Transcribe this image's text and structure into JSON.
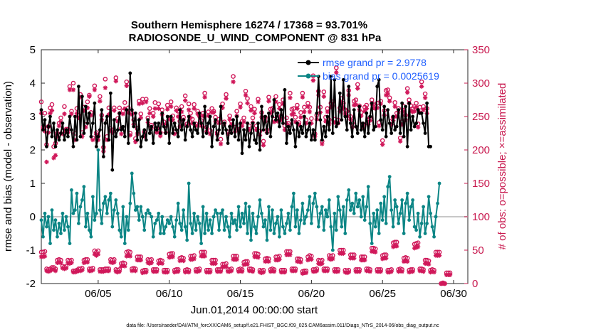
{
  "chart_data": {
    "type": "line",
    "title_line1": "Southern Hemisphere 16274 / 17368 = 93.701%",
    "title_line2": "RADIOSONDE_U_WIND_COMPONENT @ 831 hPa",
    "xlabel": "Jun.01,2014 00:00:00 start",
    "ylabel": "rmse and bias (model - observation)",
    "y2label": "# of obs: o=possible; ×=assimilated",
    "footer": "data file: /Users/raeder/DAI/ATM_forcXX/CAM6_setup/f.e21.FHIST_BGC.f09_025.CAM6assim.011/Diags_NTrS_2014-06/obs_diag_output.nc",
    "xlim": [
      1.0,
      31.0
    ],
    "ylim": [
      -2,
      5
    ],
    "y2lim": [
      0,
      350
    ],
    "xticks": [
      {
        "value": 5,
        "label": "06/05"
      },
      {
        "value": 10,
        "label": "06/10"
      },
      {
        "value": 15,
        "label": "06/15"
      },
      {
        "value": 20,
        "label": "06/20"
      },
      {
        "value": 25,
        "label": "06/25"
      },
      {
        "value": 30,
        "label": "06/30"
      }
    ],
    "yticks": [
      "-2",
      "-1",
      "0",
      "1",
      "2",
      "3",
      "4",
      "5"
    ],
    "y2ticks": [
      "0",
      "50",
      "100",
      "150",
      "200",
      "250",
      "300",
      "350"
    ],
    "series": [
      {
        "name": "rmse",
        "legend": "rmse grand pr = 2.9778",
        "color": "#000000",
        "values": [
          3.2,
          2.6,
          2.9,
          2.1,
          2.7,
          3.0,
          2.4,
          2.8,
          2.1,
          2.6,
          2.3,
          2.5,
          2.8,
          2.3,
          2.6,
          2.4,
          3.0,
          2.6,
          2.1,
          3.0,
          2.3,
          3.9,
          2.4,
          3.6,
          2.5,
          3.3,
          2.8,
          3.1,
          2.4,
          2.8,
          3.4,
          2.1,
          2.4,
          2.6,
          3.2,
          1.8,
          2.8,
          3.0,
          2.3,
          3.7,
          1.4,
          2.9,
          2.4,
          2.6,
          3.1,
          2.6,
          2.7,
          2.4,
          3.2,
          2.2,
          4.3,
          3.2,
          2.7,
          3.1,
          2.3,
          2.9,
          2.1,
          2.4,
          2.6,
          2.3,
          2.9,
          2.5,
          2.7,
          2.2,
          2.8,
          2.6,
          2.8,
          2.5,
          3.1,
          2.7,
          2.5,
          3.0,
          2.2,
          3.0,
          2.5,
          2.8,
          2.6,
          2.4,
          3.2,
          2.6,
          2.9,
          2.3,
          2.7,
          3.0,
          2.6,
          2.4,
          2.8,
          2.6,
          2.5,
          3.1,
          2.8,
          2.4,
          3.3,
          2.5,
          2.8,
          3.0,
          2.1,
          2.7,
          2.9,
          2.3,
          2.6,
          3.3,
          2.5,
          2.8,
          2.6,
          2.2,
          2.7,
          2.5,
          2.9,
          2.4,
          3.0,
          2.3,
          2.8,
          1.9,
          2.6,
          2.3,
          2.8,
          2.1,
          2.5,
          2.8,
          2.3,
          2.2,
          2.8,
          2.0,
          3.3,
          2.6,
          3.0,
          2.5,
          3.1,
          2.4,
          3.0,
          3.5,
          2.9,
          3.1,
          2.7,
          3.2,
          2.8,
          3.8,
          2.2,
          2.7,
          2.5,
          2.9,
          2.6,
          2.1,
          2.8,
          2.4,
          2.7,
          2.5,
          3.0,
          2.4,
          2.6,
          2.8,
          2.3,
          2.6,
          2.3,
          3.1,
          4.2,
          2.9,
          2.3,
          2.7,
          2.4,
          3.0,
          2.6,
          4.2,
          2.5,
          4.1,
          2.7,
          2.8,
          3.7,
          2.9,
          4.1,
          3.0,
          2.6,
          3.9,
          2.8,
          2.4,
          3.2,
          2.7,
          2.5,
          3.3,
          2.6,
          2.8,
          2.4,
          3.1,
          2.5,
          3.0,
          3.4,
          2.6,
          2.7,
          3.9,
          4.1,
          2.9,
          2.6,
          3.3,
          2.4,
          3.2,
          2.8,
          2.5,
          3.0,
          2.6,
          2.7,
          3.2,
          2.5,
          3.4,
          2.4,
          3.3,
          2.1,
          3.4,
          2.6,
          3.0,
          2.7,
          2.8,
          3.2,
          3.1,
          3.1,
          2.8,
          2.5,
          3.4,
          2.1,
          2.1
        ]
      },
      {
        "name": "bias",
        "legend": "bias grand pr = 0.0025619",
        "color": "#0b8585",
        "values": [
          -0.1,
          -0.6,
          0.1,
          -0.3,
          0.0,
          -0.8,
          0.2,
          -0.4,
          -0.1,
          -0.6,
          -0.2,
          -0.5,
          0.1,
          -0.4,
          0.0,
          -0.3,
          -0.8,
          0.8,
          0.1,
          0.2,
          0.7,
          -0.2,
          0.3,
          0.5,
          0.9,
          -0.3,
          0.1,
          -0.4,
          -0.6,
          0.6,
          -0.1,
          0.1,
          2.0,
          0.2,
          -0.2,
          0.4,
          0.6,
          0.1,
          0.5,
          0.7,
          -0.3,
          0.2,
          0.5,
          0.1,
          -0.4,
          -0.6,
          0.3,
          -0.8,
          0.0,
          -0.4,
          0.4,
          1.3,
          0.7,
          0.2,
          0.3,
          -0.1,
          0.3,
          0.0,
          -0.4,
          0.1,
          0.2,
          0.1,
          0.0,
          -0.6,
          -0.2,
          -0.1,
          0.1,
          -0.5,
          0.0,
          -0.5,
          -0.3,
          -0.1,
          -0.2,
          0.0,
          -0.3,
          -0.6,
          -0.1,
          0.4,
          -0.2,
          -0.4,
          0.2,
          -0.3,
          -0.7,
          1.0,
          -0.2,
          -0.5,
          0.1,
          -0.4,
          0.0,
          -0.2,
          -0.8,
          0.3,
          -0.5,
          0.1,
          -0.4,
          -0.1,
          -0.5,
          0.0,
          0.2,
          0.1,
          -0.4,
          0.1,
          0.2,
          -0.4,
          0.0,
          -0.3,
          -0.6,
          0.1,
          -0.2,
          -0.1,
          -0.4,
          0.3,
          -0.3,
          0.1,
          -0.2,
          0.4,
          -0.5,
          0.3,
          -0.7,
          0.1,
          -0.3,
          -0.5,
          0.0,
          0.5,
          0.1,
          -0.3,
          -0.1,
          -0.7,
          0.3,
          -0.4,
          0.2,
          -0.5,
          -0.2,
          0.0,
          -0.6,
          0.2,
          -0.3,
          -0.5,
          -0.2,
          0.1,
          -0.4,
          0.3,
          0.7,
          -0.3,
          0.2,
          -0.5,
          -0.1,
          0.4,
          -0.2,
          0.0,
          0.2,
          0.6,
          -0.2,
          0.4,
          0.7,
          0.3,
          -0.3,
          0.1,
          0.3,
          -0.4,
          0.2,
          0.0,
          0.5,
          -0.3,
          -1.0,
          0.1,
          -0.4,
          0.6,
          0.2,
          -0.3,
          0.3,
          -0.5,
          0.5,
          0.8,
          0.2,
          0.4,
          0.1,
          0.7,
          0.3,
          0.5,
          0.0,
          0.6,
          -0.1,
          0.3,
          0.9,
          -0.2,
          -0.8,
          0.1,
          -0.3,
          0.2,
          -0.5,
          0.4,
          -0.1,
          0.6,
          -0.2,
          0.9,
          1.2,
          0.2,
          -0.3,
          0.5,
          0.3,
          -0.2,
          0.1,
          0.5,
          -0.5,
          0.4,
          0.7,
          -0.1,
          0.3,
          0.5,
          -0.3,
          -0.4,
          0.1,
          -0.6,
          -0.2,
          0.3,
          -0.5,
          -0.2,
          0.6,
          0.1,
          -0.3,
          -0.6,
          0.0,
          0.4,
          1.0
        ]
      }
    ],
    "obs_possible_values": [
      272,
      234,
      255,
      208,
      235,
      263,
      268,
      205,
      210,
      225,
      240,
      248,
      228,
      265,
      231,
      231,
      295,
      258,
      300,
      225,
      262,
      252,
      283,
      226,
      264,
      238,
      272,
      282,
      256,
      218,
      296,
      226,
      221,
      280,
      252,
      204,
      306,
      220,
      263,
      232,
      229,
      263,
      308,
      247,
      263,
      232,
      258,
      271,
      302,
      263,
      225,
      255,
      245,
      217,
      232,
      273,
      254,
      276,
      227,
      276,
      248,
      262,
      237,
      255,
      271,
      232,
      269,
      226,
      260,
      242,
      236,
      267,
      248,
      272,
      251,
      227,
      263,
      258,
      243,
      265,
      249,
      281,
      239,
      269,
      255,
      246,
      268,
      239,
      258,
      254,
      244,
      255,
      285,
      234,
      257,
      229,
      262,
      258,
      249,
      226,
      246,
      216,
      269,
      242,
      283,
      227,
      251,
      243,
      310,
      234,
      258,
      236,
      269,
      243,
      248,
      288,
      277,
      236,
      265,
      248,
      261,
      236,
      276,
      228,
      256,
      213,
      249,
      230,
      279,
      261,
      262,
      246,
      280,
      247,
      268,
      251,
      275,
      236,
      248,
      240,
      285,
      261,
      262,
      249,
      267,
      241,
      256,
      285,
      264,
      245,
      270,
      264,
      247,
      311,
      224,
      252,
      288,
      264,
      213,
      287,
      249,
      262,
      245,
      270,
      272,
      246,
      323,
      245,
      263,
      277,
      270,
      260,
      258,
      289,
      250,
      240,
      273,
      275,
      298,
      266,
      256,
      239,
      264,
      267,
      245,
      248,
      275,
      269,
      267,
      270,
      241,
      273,
      214,
      259,
      289,
      290,
      278,
      243,
      249,
      271,
      255,
      262,
      218,
      242,
      265,
      252,
      292,
      275,
      266,
      262,
      265,
      270,
      239,
      264,
      302,
      265,
      284,
      262
    ],
    "obs_assimilated_values": [
      255,
      231,
      228,
      182,
      226,
      255,
      259,
      188,
      192,
      220,
      236,
      242,
      224,
      254,
      228,
      226,
      290,
      254,
      290,
      215,
      255,
      248,
      279,
      220,
      259,
      234,
      263,
      280,
      252,
      215,
      290,
      223,
      215,
      273,
      245,
      198,
      293,
      215,
      253,
      229,
      226,
      259,
      303,
      243,
      255,
      224,
      254,
      262,
      296,
      256,
      222,
      253,
      238,
      212,
      224,
      269,
      248,
      270,
      220,
      272,
      241,
      255,
      233,
      250,
      262,
      226,
      262,
      221,
      253,
      238,
      226,
      261,
      246,
      265,
      245,
      224,
      259,
      250,
      235,
      257,
      245,
      274,
      236,
      260,
      248,
      240,
      262,
      236,
      254,
      250,
      236,
      251,
      279,
      227,
      251,
      224,
      256,
      256,
      243,
      223,
      240,
      209,
      263,
      239,
      277,
      224,
      246,
      238,
      302,
      228,
      251,
      230,
      264,
      236,
      242,
      282,
      270,
      230,
      259,
      241,
      255,
      230,
      272,
      222,
      249,
      207,
      243,
      226,
      273,
      255,
      258,
      242,
      272,
      243,
      262,
      245,
      269,
      230,
      240,
      236,
      278,
      253,
      255,
      242,
      262,
      238,
      249,
      279,
      257,
      240,
      265,
      257,
      240,
      304,
      220,
      246,
      282,
      256,
      209,
      280,
      243,
      257,
      239,
      264,
      266,
      241,
      316,
      240,
      258,
      270,
      263,
      254,
      251,
      282,
      246,
      234,
      267,
      268,
      292,
      260,
      251,
      234,
      258,
      262,
      238,
      244,
      269,
      263,
      262,
      263,
      236,
      269,
      208,
      252,
      282,
      284,
      273,
      238,
      244,
      265,
      250,
      257,
      213,
      238,
      258,
      245,
      286,
      270,
      259,
      257,
      258,
      264,
      234,
      256,
      295,
      260,
      278,
      255
    ],
    "obs_possible_low": [
      47,
      47,
      48,
      22,
      21,
      22,
      24,
      24,
      22,
      35,
      36,
      35,
      26,
      25,
      26,
      35,
      34,
      35,
      19,
      19,
      20,
      22,
      22,
      23,
      35,
      36,
      36,
      22,
      22,
      23,
      49,
      47,
      49,
      21,
      21,
      21,
      22,
      22,
      22,
      36,
      35,
      36,
      21,
      20,
      21,
      30,
      31,
      30,
      47,
      48,
      47,
      22,
      23,
      22,
      40,
      40,
      40,
      19,
      20,
      20,
      36,
      35,
      36,
      21,
      21,
      21,
      34,
      35,
      34,
      20,
      20,
      20,
      44,
      45,
      45,
      20,
      21,
      21,
      38,
      39,
      38,
      20,
      21,
      20,
      41,
      41,
      42,
      21,
      21,
      22,
      47,
      47,
      47,
      20,
      20,
      20,
      35,
      35,
      35,
      21,
      21,
      21,
      29,
      29,
      30,
      21,
      21,
      22,
      41,
      41,
      41,
      21,
      22,
      21,
      32,
      33,
      33,
      22,
      22,
      21,
      45,
      45,
      44,
      20,
      19,
      20,
      37,
      38,
      37,
      21,
      22,
      21,
      40,
      40,
      41,
      20,
      20,
      20,
      48,
      48,
      48,
      22,
      22,
      22,
      37,
      37,
      36,
      18,
      19,
      19,
      40,
      42,
      41,
      21,
      21,
      22,
      35,
      34,
      35,
      22,
      22,
      22,
      42,
      41,
      42,
      21,
      21,
      21,
      50,
      50,
      50,
      20,
      19,
      20,
      43,
      43,
      43,
      21,
      21,
      21,
      40,
      40,
      40,
      22,
      22,
      21,
      53,
      53,
      52,
      21,
      21,
      21,
      42,
      43,
      43,
      20,
      20,
      21,
      61,
      62,
      62,
      21,
      22,
      21,
      38,
      39,
      38,
      20,
      21,
      21,
      59,
      60,
      61,
      22,
      22,
      21,
      35,
      35,
      34,
      20,
      21,
      20,
      47,
      47,
      47,
      0,
      1,
      0,
      16,
      16,
      16
    ],
    "obs_assimilated_low": [
      40,
      40,
      41,
      19,
      18,
      19,
      21,
      21,
      19,
      31,
      32,
      31,
      23,
      22,
      23,
      31,
      30,
      31,
      17,
      17,
      18,
      19,
      19,
      20,
      31,
      32,
      32,
      19,
      19,
      20,
      44,
      42,
      44,
      18,
      18,
      18,
      19,
      19,
      19,
      32,
      31,
      32,
      18,
      17,
      18,
      26,
      27,
      26,
      41,
      42,
      41,
      19,
      20,
      19,
      35,
      35,
      35,
      16,
      17,
      17,
      31,
      30,
      31,
      18,
      18,
      18,
      30,
      31,
      30,
      17,
      17,
      17,
      39,
      40,
      40,
      17,
      18,
      18,
      34,
      35,
      34,
      17,
      18,
      17,
      36,
      36,
      37,
      18,
      18,
      19,
      41,
      41,
      41,
      17,
      17,
      17,
      30,
      30,
      30,
      18,
      18,
      18,
      25,
      25,
      26,
      18,
      18,
      19,
      36,
      36,
      36,
      18,
      19,
      18,
      28,
      29,
      29,
      19,
      19,
      18,
      40,
      40,
      39,
      17,
      16,
      17,
      33,
      34,
      33,
      18,
      19,
      18,
      35,
      35,
      36,
      17,
      17,
      17,
      43,
      43,
      43,
      19,
      19,
      19,
      33,
      33,
      32,
      15,
      16,
      16,
      35,
      37,
      36,
      18,
      18,
      19,
      30,
      29,
      30,
      19,
      19,
      19,
      37,
      36,
      37,
      18,
      18,
      18,
      45,
      45,
      45,
      17,
      16,
      17,
      38,
      38,
      38,
      18,
      18,
      18,
      35,
      35,
      35,
      19,
      19,
      18,
      48,
      48,
      47,
      18,
      18,
      18,
      37,
      38,
      38,
      17,
      17,
      18,
      55,
      56,
      56,
      18,
      19,
      18,
      33,
      34,
      33,
      17,
      18,
      18,
      53,
      54,
      55,
      19,
      19,
      18,
      30,
      30,
      29,
      17,
      18,
      17,
      42,
      42,
      42,
      0,
      0,
      0,
      13,
      13,
      13
    ]
  }
}
